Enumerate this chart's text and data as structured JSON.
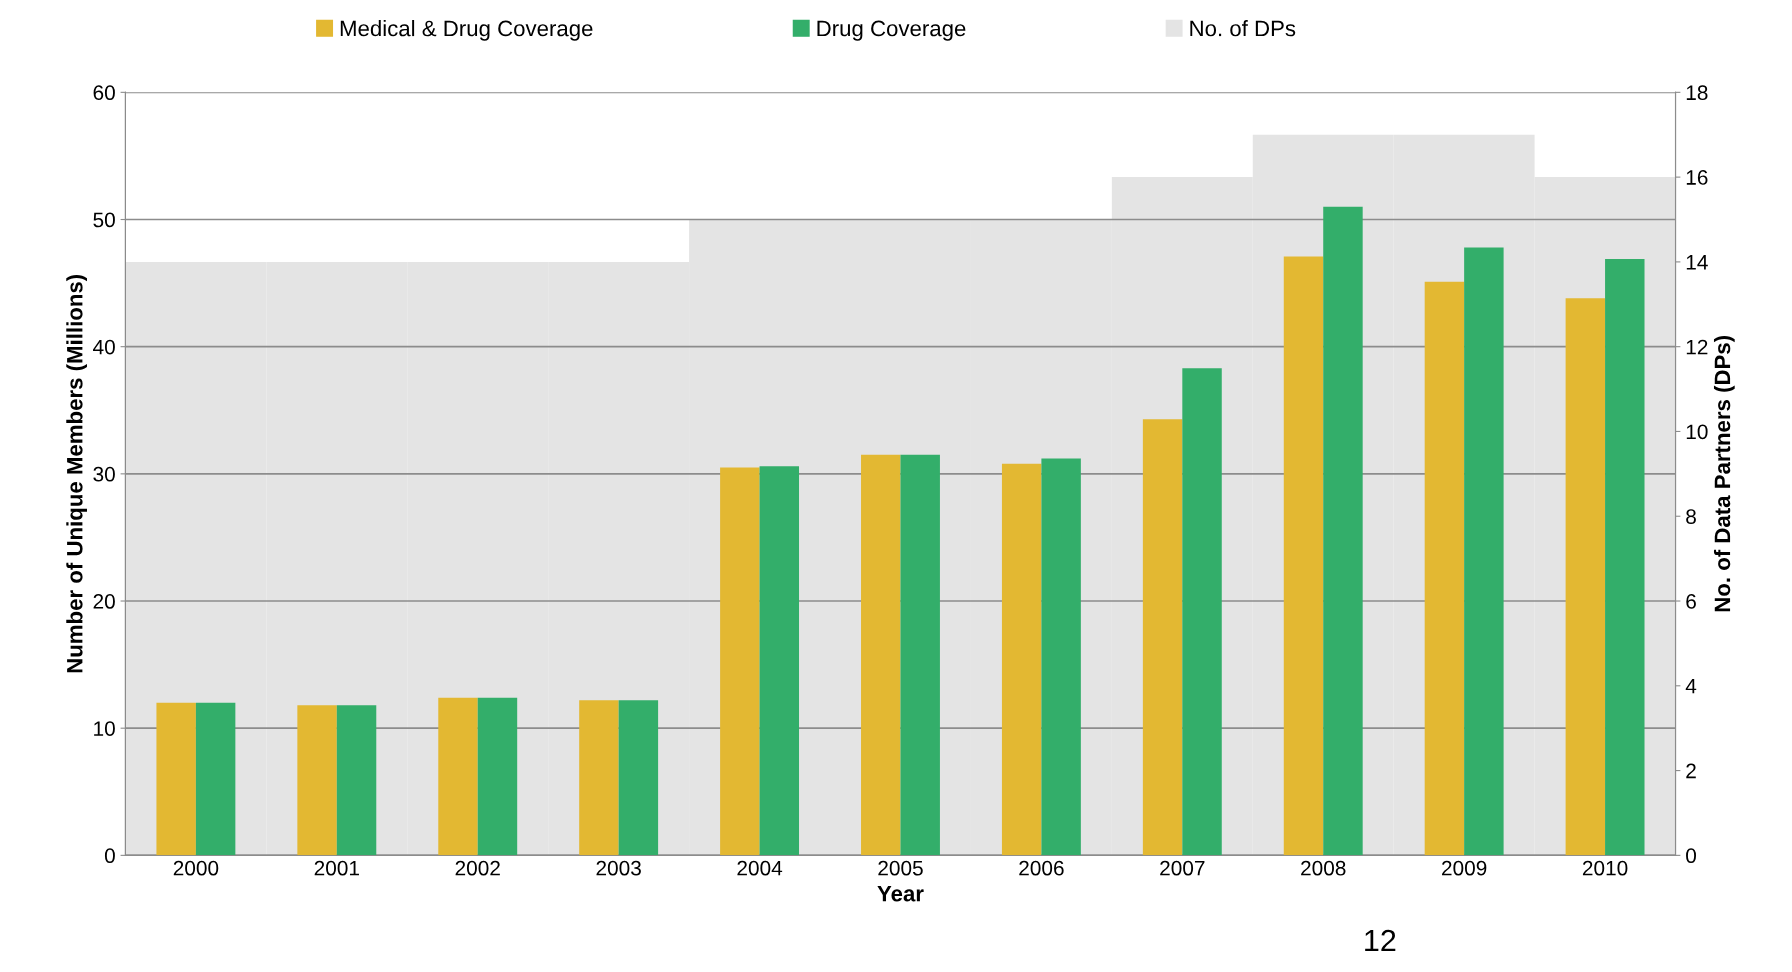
{
  "chart_data": {
    "type": "bar",
    "xlabel": "Year",
    "ylabel": "Number of Unique Members (Millions)",
    "y2label": "No. of Data Partners (DPs)",
    "categories": [
      "2000",
      "2001",
      "2002",
      "2003",
      "2004",
      "2005",
      "2006",
      "2007",
      "2008",
      "2009",
      "2010"
    ],
    "series": [
      {
        "name": "Medical & Drug Coverage",
        "color": "#e3b832",
        "values": [
          12.0,
          11.8,
          12.4,
          12.2,
          30.5,
          31.5,
          30.8,
          34.3,
          47.1,
          45.1,
          43.8
        ]
      },
      {
        "name": "Drug Coverage",
        "color": "#33ae6a",
        "values": [
          12.0,
          11.8,
          12.4,
          12.2,
          30.6,
          31.5,
          31.2,
          38.3,
          51.0,
          47.8,
          46.9
        ]
      },
      {
        "name": "No. of DPs",
        "color": "#e4e4e4",
        "axis": "y2",
        "values": [
          14,
          14,
          14,
          14,
          15,
          15,
          15,
          16,
          17,
          17,
          16
        ]
      }
    ],
    "ylim": [
      0,
      60
    ],
    "yticks": [
      0,
      10,
      20,
      30,
      40,
      50,
      60
    ],
    "y2lim": [
      0,
      18
    ],
    "y2ticks": [
      0,
      2,
      4,
      6,
      8,
      10,
      12,
      14,
      16,
      18
    ],
    "grid": "y",
    "legend": "top",
    "annotations": [
      "12"
    ]
  }
}
